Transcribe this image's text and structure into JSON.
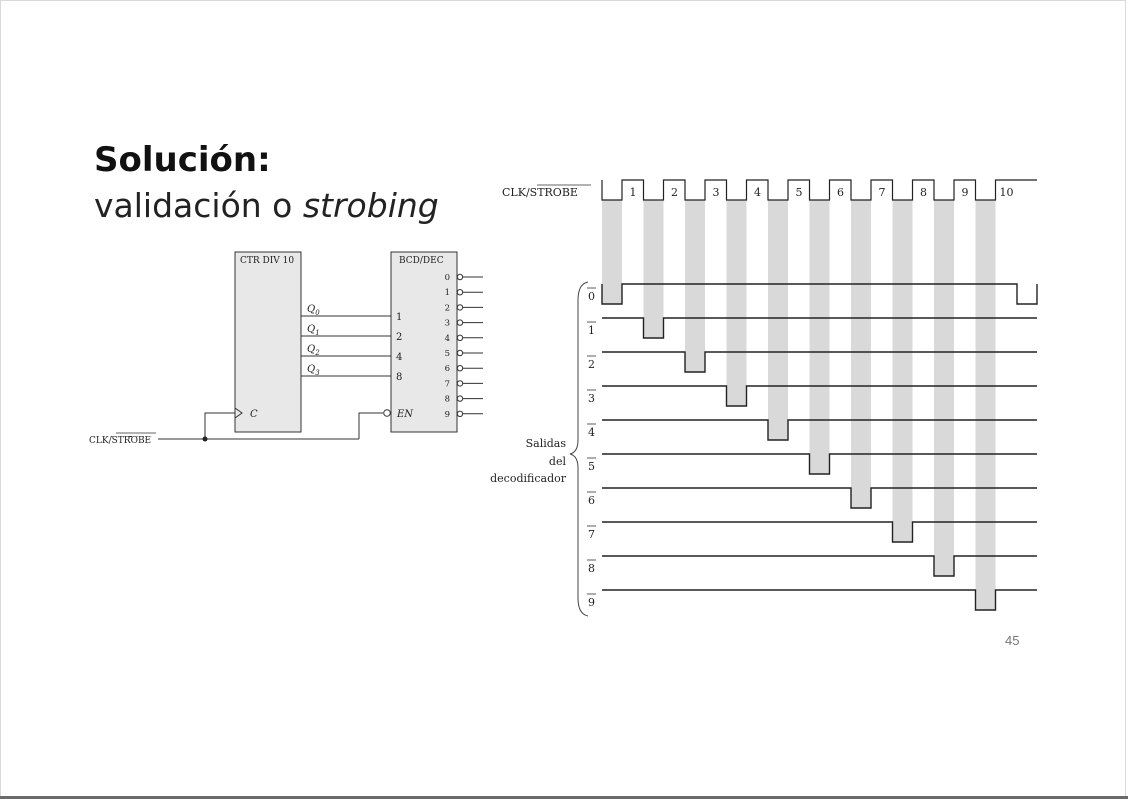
{
  "slide": {
    "title_bold": "Solución",
    "title_colon": ":",
    "title_line2_text": "validación o ",
    "title_line2_italic": "strobing",
    "page_number": "45"
  },
  "circuit": {
    "counter_label": "CTR DIV 10",
    "decoder_label": "BCD/DEC",
    "counter_clock_label": "C",
    "decoder_enable_label": "EN",
    "counter_outputs": [
      {
        "q": "Q",
        "sub": "0",
        "weight": "1"
      },
      {
        "q": "Q",
        "sub": "1",
        "weight": "2"
      },
      {
        "q": "Q",
        "sub": "2",
        "weight": "4"
      },
      {
        "q": "Q",
        "sub": "3",
        "weight": "8"
      }
    ],
    "decoder_outputs": [
      "0",
      "1",
      "2",
      "3",
      "4",
      "5",
      "6",
      "7",
      "8",
      "9"
    ],
    "input_label_prefix": "CLK/",
    "input_label_overbar": "STROBE"
  },
  "timing": {
    "clock_label_prefix": "CLK/",
    "clock_label_overbar": "STROBE",
    "pulse_labels": [
      "1",
      "2",
      "3",
      "4",
      "5",
      "6",
      "7",
      "8",
      "9",
      "10"
    ],
    "output_labels": [
      "0",
      "1",
      "2",
      "3",
      "4",
      "5",
      "6",
      "7",
      "8",
      "9"
    ],
    "group_label_lines": [
      "Salidas",
      "del",
      "decodificador"
    ]
  },
  "colors": {
    "ink": "#222222",
    "pulse_band": "#d9d9d9",
    "background": "#ffffff"
  }
}
